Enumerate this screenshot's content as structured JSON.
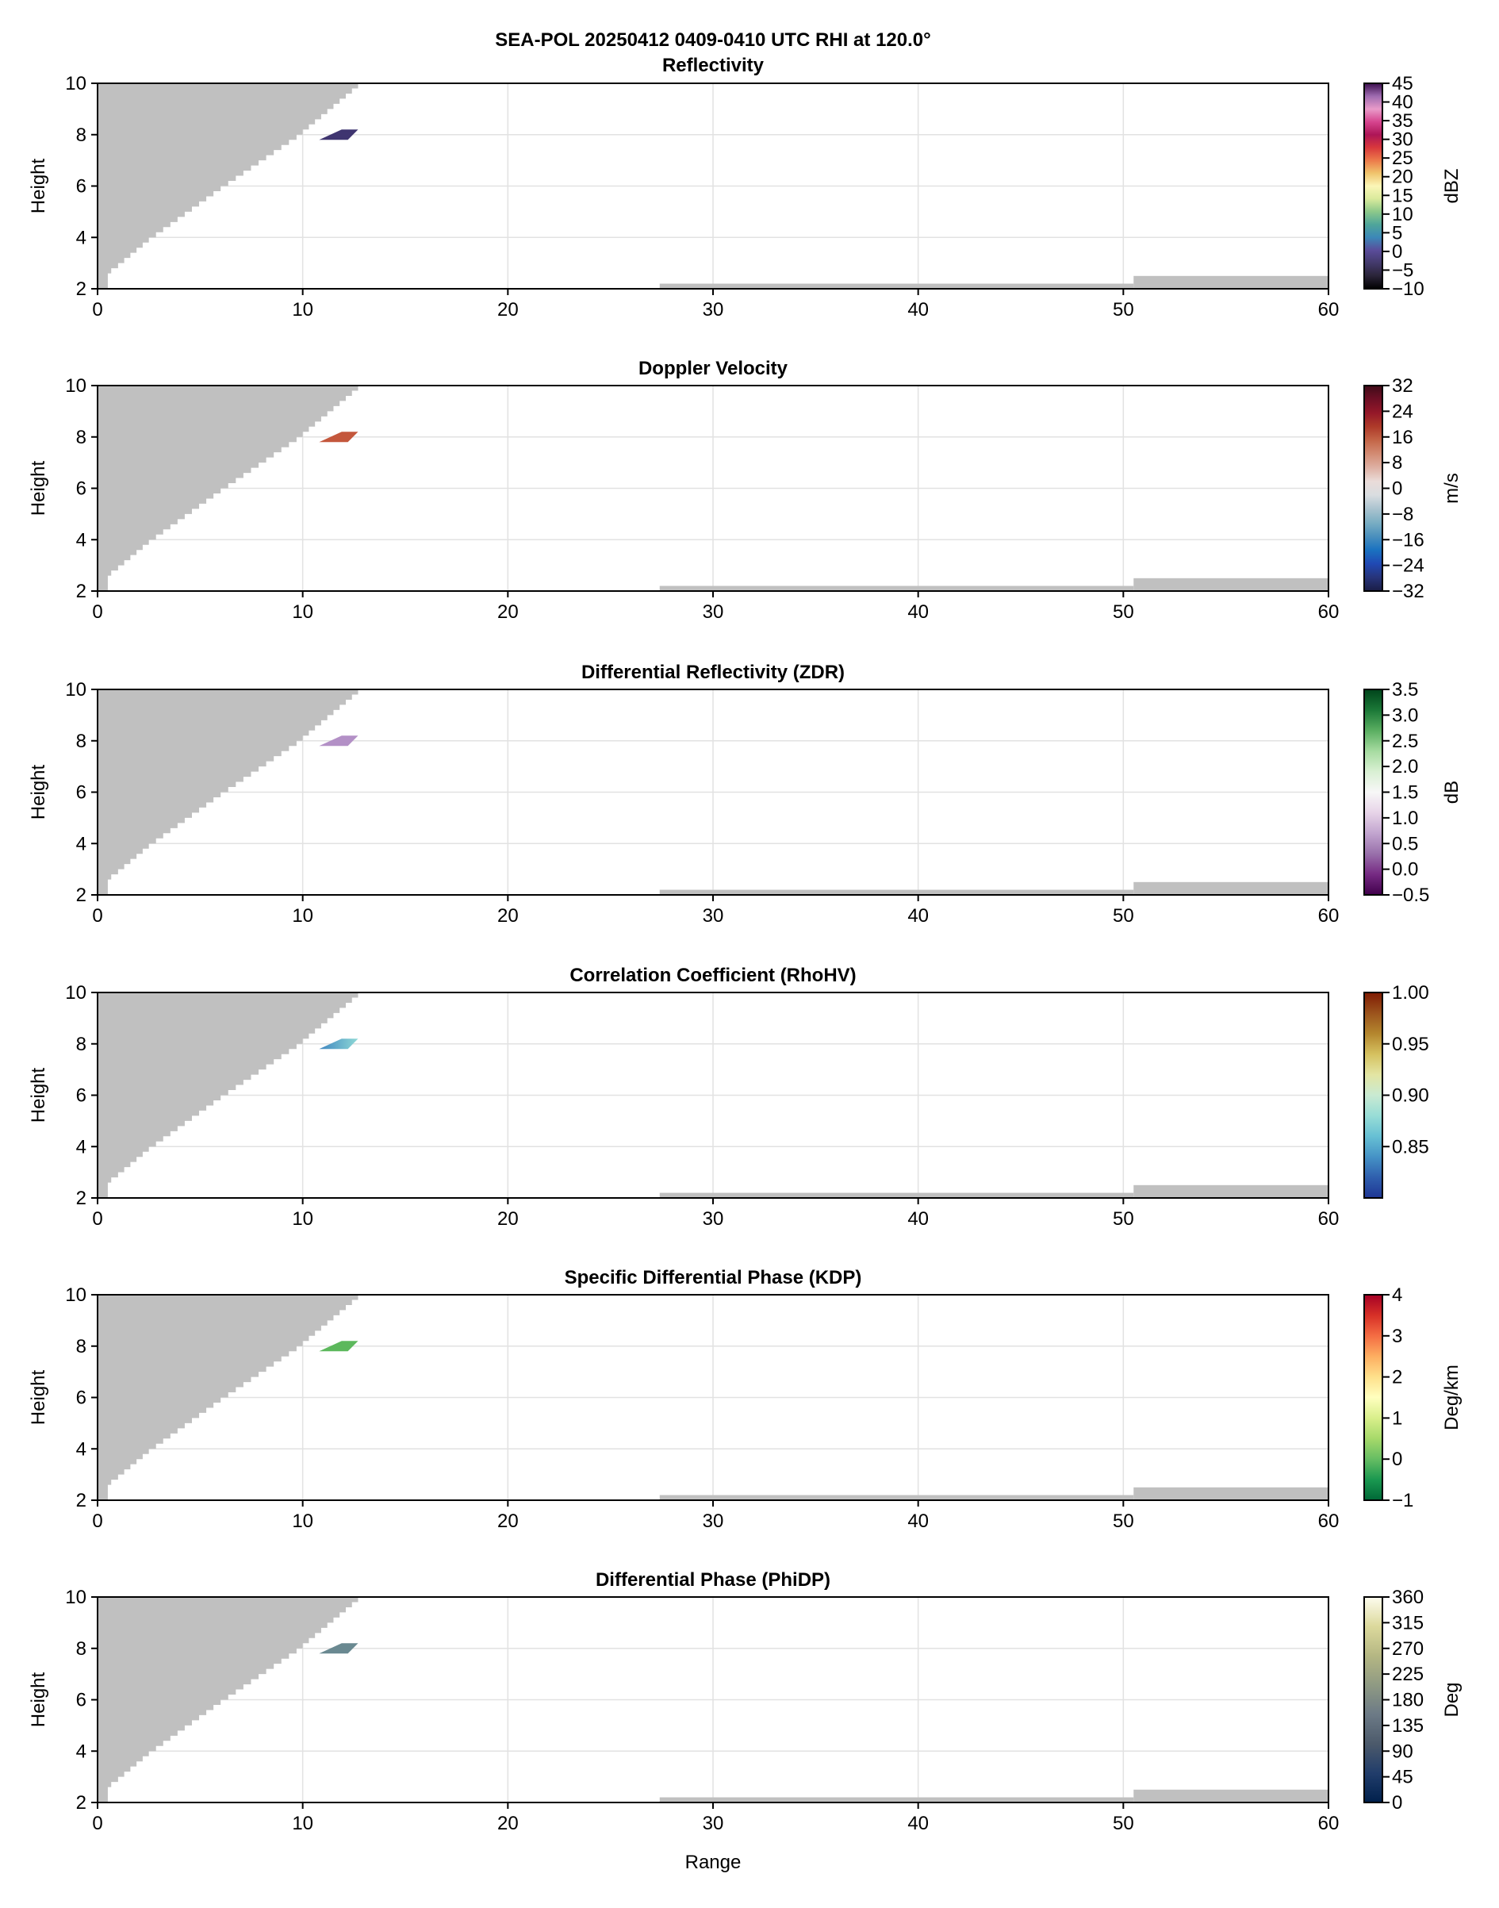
{
  "suptitle": "SEA-POL 20250412 0409-0410 UTC RHI at 120.0°",
  "xlabel": "Range",
  "chart_data": [
    {
      "type": "heatmap",
      "title": "Reflectivity",
      "ylabel": "Height",
      "xlim": [
        0,
        60
      ],
      "ylim": [
        2,
        10
      ],
      "xticks": [
        0,
        10,
        20,
        30,
        40,
        50,
        60
      ],
      "yticks": [
        2,
        4,
        6,
        8,
        10
      ],
      "grid": true,
      "colorbar": {
        "label": "dBZ",
        "range": [
          -10,
          45
        ],
        "ticks": [
          -10,
          -5,
          0,
          5,
          10,
          15,
          20,
          25,
          30,
          35,
          40,
          45
        ],
        "colors": [
          "#000000",
          "#2a2438",
          "#433a6b",
          "#5a4c9a",
          "#3c88b8",
          "#4fa59a",
          "#8cc88a",
          "#d9ea9c",
          "#fbf6b7",
          "#f0c46c",
          "#ec7a4a",
          "#d8383c",
          "#ad1557",
          "#d6458f",
          "#e99bc9",
          "#9e6bb0",
          "#3d0f4f"
        ]
      },
      "echo": {
        "range": [
          10.8,
          12.7
        ],
        "height": [
          7.8,
          8.2
        ],
        "color": "#3f3570"
      }
    },
    {
      "type": "heatmap",
      "title": "Doppler Velocity",
      "ylabel": "Height",
      "xlim": [
        0,
        60
      ],
      "ylim": [
        2,
        10
      ],
      "xticks": [
        0,
        10,
        20,
        30,
        40,
        50,
        60
      ],
      "yticks": [
        2,
        4,
        6,
        8,
        10
      ],
      "grid": true,
      "colorbar": {
        "label": "m/s",
        "range": [
          -32,
          32
        ],
        "ticks": [
          -32,
          -24,
          -16,
          -8,
          0,
          8,
          16,
          24,
          32
        ],
        "colors": [
          "#1a1d45",
          "#27347a",
          "#2049b4",
          "#1a72c0",
          "#4b90bd",
          "#7aaec3",
          "#aac3cf",
          "#d9dde0",
          "#eadcd9",
          "#deb1a4",
          "#d38c74",
          "#c46648",
          "#ae3a29",
          "#951829",
          "#6e0f25",
          "#3f0b18"
        ]
      },
      "echo": {
        "range": [
          10.8,
          12.7
        ],
        "height": [
          7.8,
          8.2
        ],
        "color": "#c4573c"
      }
    },
    {
      "type": "heatmap",
      "title": "Differential Reflectivity (ZDR)",
      "ylabel": "Height",
      "xlim": [
        0,
        60
      ],
      "ylim": [
        2,
        10
      ],
      "xticks": [
        0,
        10,
        20,
        30,
        40,
        50,
        60
      ],
      "yticks": [
        2,
        4,
        6,
        8,
        10
      ],
      "grid": true,
      "colorbar": {
        "label": "dB",
        "range": [
          -0.5,
          3.5
        ],
        "ticks": [
          -0.5,
          0.0,
          0.5,
          1.0,
          1.5,
          2.0,
          2.5,
          3.0,
          3.5
        ],
        "tick_labels": [
          "−0.5",
          "0.0",
          "0.5",
          "1.0",
          "1.5",
          "2.0",
          "2.5",
          "3.0",
          "3.5"
        ],
        "colors": [
          "#40004b",
          "#762a83",
          "#9970ab",
          "#c2a5cf",
          "#e7d4e8",
          "#f7f7f7",
          "#d9f0d3",
          "#a6dba0",
          "#5aae61",
          "#1b7837",
          "#00441b"
        ]
      },
      "echo": {
        "range": [
          10.8,
          12.7
        ],
        "height": [
          7.8,
          8.2
        ],
        "color": "#b390c6"
      }
    },
    {
      "type": "heatmap",
      "title": "Correlation Coefficient (RhoHV)",
      "ylabel": "Height",
      "xlim": [
        0,
        60
      ],
      "ylim": [
        2,
        10
      ],
      "xticks": [
        0,
        10,
        20,
        30,
        40,
        50,
        60
      ],
      "yticks": [
        2,
        4,
        6,
        8,
        10
      ],
      "grid": true,
      "colorbar": {
        "label": "",
        "range": [
          0.8,
          1.0
        ],
        "ticks": [
          0.85,
          0.9,
          0.95,
          1.0
        ],
        "tick_labels": [
          "0.85",
          "0.90",
          "0.95",
          "1.00"
        ],
        "colors": [
          "#1f3694",
          "#2f5fae",
          "#4593c6",
          "#67c0d4",
          "#98ddd6",
          "#c9ead2",
          "#e3e5a3",
          "#d5c15f",
          "#b4862e",
          "#9b531c",
          "#7f1a02"
        ]
      },
      "echo": {
        "range": [
          10.8,
          12.7
        ],
        "height": [
          7.8,
          8.2
        ],
        "color": "#3f86c0",
        "color2": "#8fd9d6"
      }
    },
    {
      "type": "heatmap",
      "title": "Specific Differential Phase (KDP)",
      "ylabel": "Height",
      "xlim": [
        0,
        60
      ],
      "ylim": [
        2,
        10
      ],
      "xticks": [
        0,
        10,
        20,
        30,
        40,
        50,
        60
      ],
      "yticks": [
        2,
        4,
        6,
        8,
        10
      ],
      "grid": true,
      "colorbar": {
        "label": "Deg/km",
        "range": [
          -1,
          4
        ],
        "ticks": [
          -1,
          0,
          1,
          2,
          3,
          4
        ],
        "colors": [
          "#006837",
          "#1a9850",
          "#66bd63",
          "#a6d96a",
          "#d9ef8b",
          "#ffffbf",
          "#fee08b",
          "#fdae61",
          "#f46d43",
          "#d73027",
          "#a50026"
        ]
      },
      "echo": {
        "range": [
          10.8,
          12.7
        ],
        "height": [
          7.8,
          8.2
        ],
        "color": "#5cb85c"
      }
    },
    {
      "type": "heatmap",
      "title": "Differential Phase (PhiDP)",
      "ylabel": "Height",
      "xlim": [
        0,
        60
      ],
      "ylim": [
        2,
        10
      ],
      "xticks": [
        0,
        10,
        20,
        30,
        40,
        50,
        60
      ],
      "yticks": [
        2,
        4,
        6,
        8,
        10
      ],
      "grid": true,
      "colorbar": {
        "label": "Deg",
        "range": [
          0,
          360
        ],
        "ticks": [
          0,
          45,
          90,
          135,
          180,
          225,
          270,
          315,
          360
        ],
        "colors": [
          "#00204c",
          "#213d6b",
          "#4c5a6b",
          "#6c7a86",
          "#8f9a83",
          "#b5b783",
          "#dcd99c",
          "#fdfcee"
        ]
      },
      "echo": {
        "range": [
          10.8,
          12.7
        ],
        "height": [
          7.8,
          8.2
        ],
        "color": "#6a8991"
      }
    }
  ],
  "blocked_region": {
    "color": "#c0c0c0",
    "left_edge": [
      [
        2,
        0.5
      ],
      [
        2.7,
        0.5
      ],
      [
        3,
        1.0
      ],
      [
        4,
        2.5
      ],
      [
        6,
        6.0
      ],
      [
        8,
        9.7
      ],
      [
        10,
        12.7
      ]
    ],
    "bottom": [
      {
        "range": [
          27.4,
          50.5
        ],
        "top": 2.2
      },
      {
        "range": [
          50.5,
          60
        ],
        "top": 2.5
      }
    ]
  }
}
